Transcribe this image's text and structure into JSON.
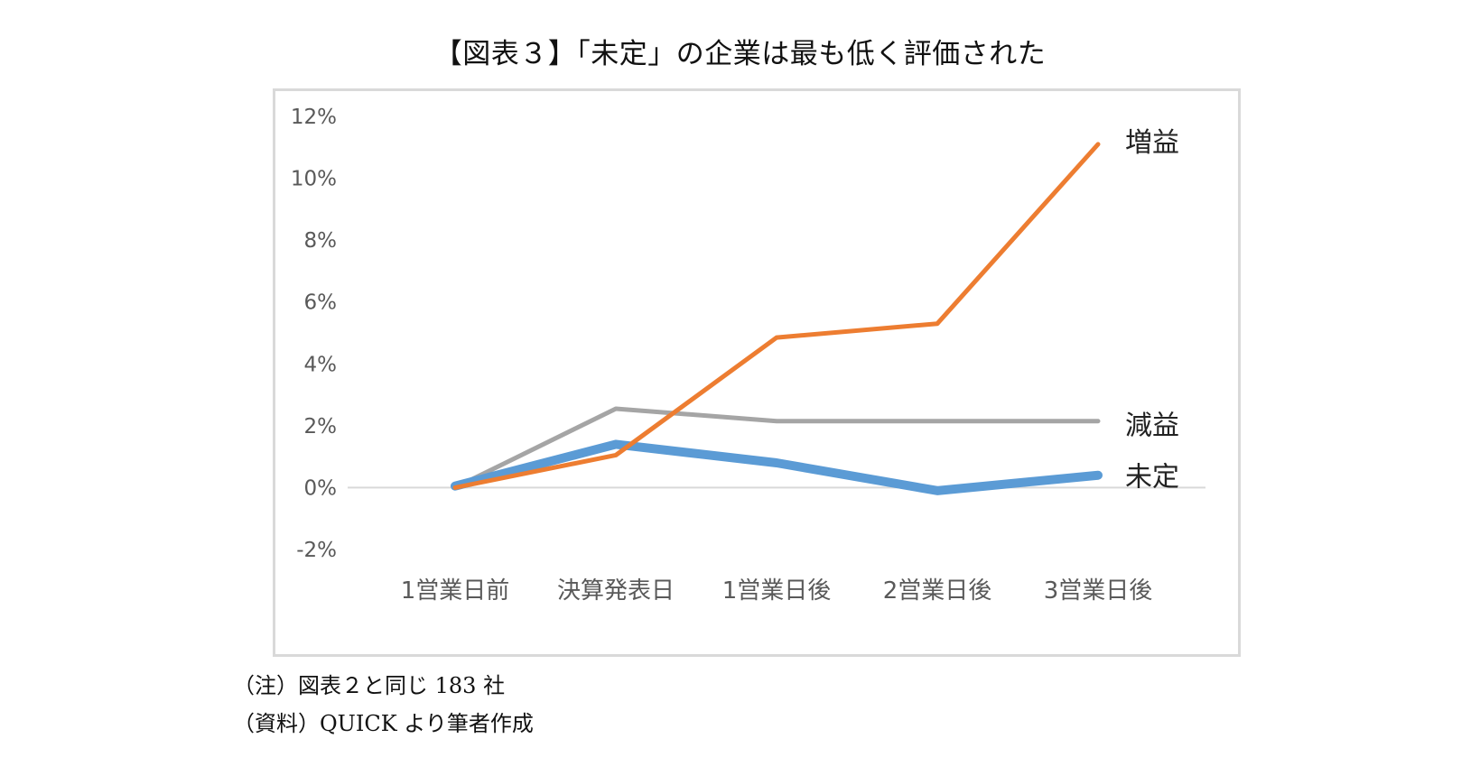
{
  "title": "【図表３】「未定」の企業は最も低く評価された",
  "chart_data": {
    "type": "line",
    "title": "",
    "xlabel": "",
    "ylabel": "",
    "categories": [
      "1営業日前",
      "決算発表日",
      "1営業日後",
      "2営業日後",
      "3営業日後"
    ],
    "y_ticks": [
      "12%",
      "10%",
      "8%",
      "6%",
      "4%",
      "2%",
      "0%",
      "-2%"
    ],
    "ylim": [
      -2,
      12
    ],
    "y_unit": "%",
    "grid": false,
    "legend": "inline-right",
    "series": [
      {
        "name": "増益",
        "color": "#ED7D31",
        "values": [
          0.0,
          1.05,
          4.85,
          5.3,
          11.1
        ]
      },
      {
        "name": "減益",
        "color": "#A5A5A5",
        "values": [
          0.0,
          2.55,
          2.15,
          2.15,
          2.15
        ]
      },
      {
        "name": "未定",
        "color": "#5B9BD5",
        "values": [
          0.05,
          1.4,
          0.8,
          -0.1,
          0.4
        ]
      }
    ]
  },
  "notes": {
    "note1": "（注）図表２と同じ 183 社",
    "note2": "（資料）QUICK より筆者作成"
  }
}
